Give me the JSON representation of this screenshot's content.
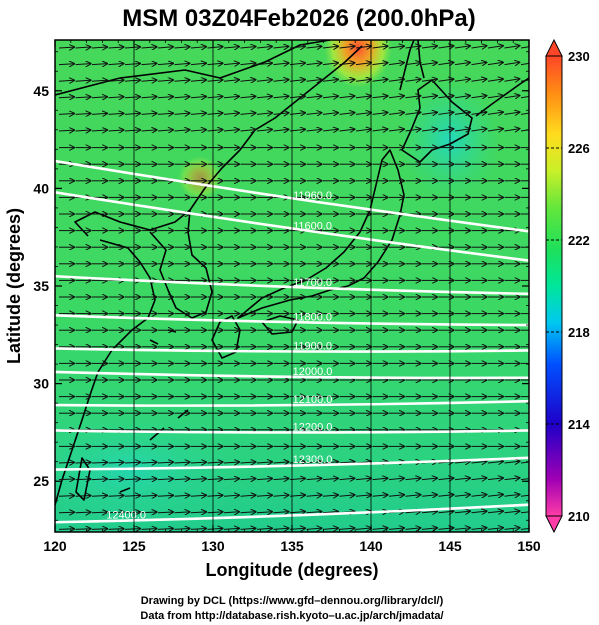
{
  "title": "MSM 03Z04Feb2026 (200.0hPa)",
  "map": {
    "x_axis": {
      "label": "Longitude (degrees)",
      "range": [
        120,
        150
      ],
      "ticks": [
        "120",
        "125",
        "130",
        "135",
        "140",
        "145",
        "150"
      ]
    },
    "y_axis": {
      "label": "Latitude (degrees)",
      "range": [
        22.4,
        47.6
      ],
      "ticks": [
        "25",
        "30",
        "35",
        "40",
        "45"
      ]
    },
    "field": "temperature-like shaded field with wind vectors and height contours",
    "contours": [
      {
        "label": "11960.0",
        "lat_west": 41.4,
        "lat_east": 37.8
      },
      {
        "label": "11600.0",
        "lat_west": 39.8,
        "lat_east": 36.3
      },
      {
        "label": "11700.0",
        "lat_west": 35.5,
        "lat_east": 34.6
      },
      {
        "label": "11800.0",
        "lat_west": 33.5,
        "lat_east": 33.0
      },
      {
        "label": "11900.0",
        "lat_west": 31.8,
        "lat_east": 31.7
      },
      {
        "label": "12000.0",
        "lat_west": 30.6,
        "lat_east": 30.3
      },
      {
        "label": "12100.0",
        "lat_west": 28.9,
        "lat_east": 29.1
      },
      {
        "label": "12200.0",
        "lat_west": 27.6,
        "lat_east": 27.6
      },
      {
        "label": "12300.0",
        "lat_west": 25.6,
        "lat_east": 26.2
      },
      {
        "label": "12400.0",
        "lat_west": 22.9,
        "lat_east": 23.8
      }
    ]
  },
  "colorbar": {
    "min": 210,
    "max": 230,
    "tick_labels": [
      "230",
      "226",
      "222",
      "218",
      "214",
      "210"
    ],
    "colors": [
      "#ff3ca8",
      "#a000b4",
      "#1e00c8",
      "#0050ff",
      "#00c8f0",
      "#00e69a",
      "#1ee05a",
      "#64e63c",
      "#c8f028",
      "#ffdc1e",
      "#ff8c14",
      "#ff4628"
    ]
  },
  "credits": {
    "line1": "Drawing by DCL (https://www.gfd–dennou.org/library/dcl/)",
    "line2": "Data from http://database.rish.kyoto–u.ac.jp/arch/jmadata/"
  }
}
